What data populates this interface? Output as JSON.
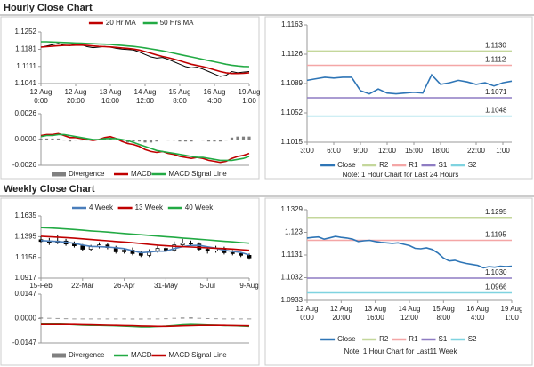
{
  "chart_data": [
    {
      "type": "price",
      "title": "Hourly Close Chart",
      "categories": [
        "12 Aug\n0:00",
        null,
        null,
        null,
        null,
        null,
        "12 Aug\n20:00",
        null,
        null,
        null,
        null,
        null,
        "13 Aug\n16:00",
        null,
        null,
        null,
        null,
        null,
        "14 Aug\n12:00",
        null,
        null,
        null,
        null,
        null,
        "15 Aug\n8:00",
        null,
        null,
        null,
        null,
        null,
        "16 Aug\n4:00",
        null,
        null,
        null,
        null,
        null,
        "19 Aug\n1:00"
      ],
      "ylim": [
        1.1041,
        1.1252
      ],
      "yticks": [
        1.1252,
        1.1181,
        1.1111,
        1.1041
      ],
      "price": {
        "color": "#000000",
        "values": [
          1.119,
          1.1195,
          1.12,
          1.1205,
          1.1198,
          1.1196,
          1.1203,
          1.12,
          1.1192,
          1.1188,
          1.119,
          1.1193,
          1.119,
          1.1185,
          1.1182,
          1.118,
          1.1178,
          1.117,
          1.116,
          1.115,
          1.1145,
          1.1148,
          1.114,
          1.113,
          1.112,
          1.111,
          1.1105,
          1.1108,
          1.11,
          1.109,
          1.108,
          1.107,
          1.1075,
          1.109,
          1.1085,
          1.1088,
          1.109
        ]
      },
      "series": [
        {
          "name": "20 Hr MA",
          "color": "#c00000",
          "values": [
            1.119,
            1.1192,
            1.1194,
            1.1196,
            1.1197,
            1.1197,
            1.1198,
            1.1198,
            1.1197,
            1.1195,
            1.1193,
            1.1192,
            1.1191,
            1.1189,
            1.1187,
            1.1185,
            1.1182,
            1.1178,
            1.1172,
            1.1165,
            1.1158,
            1.1152,
            1.1147,
            1.1141,
            1.1134,
            1.1127,
            1.112,
            1.1115,
            1.111,
            1.1104,
            1.1097,
            1.109,
            1.1085,
            1.1082,
            1.1082,
            1.1083,
            1.1085
          ]
        },
        {
          "name": "50 Hrs MA",
          "color": "#22aa44",
          "values": [
            1.1212,
            1.1212,
            1.1211,
            1.121,
            1.1209,
            1.1208,
            1.1207,
            1.1206,
            1.1205,
            1.1204,
            1.1203,
            1.1202,
            1.1201,
            1.1199,
            1.1197,
            1.1195,
            1.1193,
            1.119,
            1.1187,
            1.1183,
            1.1179,
            1.1175,
            1.117,
            1.1165,
            1.116,
            1.1155,
            1.115,
            1.1145,
            1.114,
            1.1135,
            1.113,
            1.1125,
            1.112,
            1.1116,
            1.1113,
            1.1111,
            1.111
          ]
        }
      ]
    },
    {
      "type": "macd",
      "ylim": [
        -0.0026,
        0.0026
      ],
      "yticks": [
        {
          "value": 0.0026,
          "label": "0.0026"
        },
        {
          "value": 0,
          "label": "0.0000"
        },
        {
          "value": -0.0026,
          "label": "-0.0026"
        }
      ],
      "series": [
        {
          "name": "Divergence",
          "color": "#808080",
          "kind": "bar",
          "values": [
            0.0001,
            0.0001,
            0.0001,
            0.0001,
            -0.0001,
            -0.0002,
            -0.0001,
            -0.0001,
            -0.0001,
            -0.0001,
            0,
            0.0001,
            0.0002,
            0,
            -0.0002,
            -0.0003,
            -0.0002,
            -0.0002,
            -0.0003,
            -0.0003,
            -0.0002,
            0,
            -0.0001,
            -0.0001,
            -0.0002,
            -0.0002,
            -0.0002,
            0,
            -0.0001,
            -0.0002,
            -0.0002,
            -0.0002,
            -0.0001,
            0.0002,
            0.0003,
            0.0003,
            0.0003
          ]
        },
        {
          "name": "MACD",
          "color": "#c00000",
          "kind": "line",
          "values": [
            0.0004,
            0.0005,
            0.0005,
            0.0006,
            0.0004,
            0.0002,
            0.0002,
            0.0001,
            0,
            -0.0001,
            0,
            0.0002,
            0.0003,
            0.0001,
            -0.0002,
            -0.0004,
            -0.0005,
            -0.0007,
            -0.001,
            -0.0012,
            -0.0013,
            -0.0012,
            -0.0014,
            -0.0015,
            -0.0017,
            -0.0018,
            -0.0019,
            -0.0018,
            -0.0019,
            -0.0021,
            -0.0022,
            -0.0023,
            -0.0022,
            -0.0019,
            -0.0017,
            -0.0016,
            -0.0014
          ]
        },
        {
          "name": "MACD Signal Line",
          "color": "#22aa44",
          "kind": "line",
          "values": [
            0.0003,
            0.0004,
            0.0004,
            0.0005,
            0.0005,
            0.0004,
            0.0003,
            0.0002,
            0.0001,
            0,
            0,
            0.0001,
            0.0001,
            0.0001,
            0,
            -0.0001,
            -0.0003,
            -0.0005,
            -0.0007,
            -0.0009,
            -0.0011,
            -0.0012,
            -0.0013,
            -0.0014,
            -0.0015,
            -0.0016,
            -0.0017,
            -0.0018,
            -0.0018,
            -0.0019,
            -0.002,
            -0.0021,
            -0.0021,
            -0.0021,
            -0.002,
            -0.0019,
            -0.0017
          ]
        }
      ]
    },
    {
      "type": "levels",
      "categories": [
        "3:00",
        null,
        null,
        "6:00",
        null,
        null,
        "9:00",
        null,
        null,
        "12:00",
        null,
        null,
        "15:00",
        null,
        null,
        "18:00",
        null,
        null,
        null,
        "22:00",
        null,
        null,
        "1:00",
        null
      ],
      "ylim": [
        1.1015,
        1.1163
      ],
      "yticks": [
        1.1163,
        1.1126,
        1.1089,
        1.1052,
        1.1015
      ],
      "series": [
        {
          "name": "Close",
          "color": "#2e75b6",
          "values": [
            1.1093,
            1.1095,
            1.1097,
            1.1096,
            1.1097,
            1.1097,
            1.108,
            1.1076,
            1.1082,
            1.1077,
            1.1076,
            1.1077,
            1.1078,
            1.1077,
            1.11,
            1.1088,
            1.109,
            1.1093,
            1.1091,
            1.1088,
            1.109,
            1.1086,
            1.109,
            1.1092
          ]
        }
      ],
      "levels": [
        {
          "name": "R2",
          "value": 1.113,
          "label": "1.1130",
          "color": "#c4d79b"
        },
        {
          "name": "R1",
          "value": 1.1112,
          "label": "1.1112",
          "color": "#f4a6a6"
        },
        {
          "name": "S1",
          "value": 1.1071,
          "label": "1.1071",
          "color": "#8e7cc3"
        },
        {
          "name": "S2",
          "value": 1.1048,
          "label": "1.1048",
          "color": "#7fd3e0"
        }
      ],
      "note": "Note: 1 Hour Chart for Last 24 Hours"
    },
    {
      "type": "price",
      "title": "Weekly Close Chart",
      "categories": [
        "15-Feb",
        null,
        null,
        null,
        null,
        "22-Mar",
        null,
        null,
        null,
        null,
        "26-Apr",
        null,
        null,
        null,
        null,
        "31-May",
        null,
        null,
        null,
        null,
        "5-Jul",
        null,
        null,
        null,
        null,
        "9-Aug"
      ],
      "ylim": [
        1.0917,
        1.1635
      ],
      "yticks": [
        1.1635,
        1.1395,
        1.1156,
        1.0917
      ],
      "candles": {
        "open": [
          1.136,
          1.134,
          1.133,
          1.1345,
          1.131,
          1.129,
          1.125,
          1.128,
          1.13,
          1.127,
          1.122,
          1.124,
          1.12,
          1.118,
          1.123,
          1.126,
          1.124,
          1.13,
          1.132,
          1.131,
          1.125,
          1.123,
          1.126,
          1.121,
          1.12,
          1.118
        ],
        "high": [
          1.14,
          1.138,
          1.142,
          1.137,
          1.134,
          1.131,
          1.13,
          1.133,
          1.132,
          1.129,
          1.126,
          1.127,
          1.123,
          1.125,
          1.129,
          1.128,
          1.134,
          1.137,
          1.135,
          1.133,
          1.127,
          1.129,
          1.128,
          1.124,
          1.122,
          1.12
        ],
        "low": [
          1.132,
          1.13,
          1.131,
          1.129,
          1.127,
          1.123,
          1.123,
          1.126,
          1.125,
          1.12,
          1.12,
          1.118,
          1.116,
          1.116,
          1.121,
          1.122,
          1.122,
          1.128,
          1.129,
          1.123,
          1.12,
          1.121,
          1.119,
          1.118,
          1.116,
          1.113
        ],
        "close": [
          1.134,
          1.133,
          1.1345,
          1.131,
          1.129,
          1.125,
          1.128,
          1.13,
          1.127,
          1.122,
          1.124,
          1.12,
          1.118,
          1.123,
          1.126,
          1.124,
          1.13,
          1.132,
          1.131,
          1.125,
          1.123,
          1.126,
          1.121,
          1.12,
          1.118,
          1.115
        ]
      },
      "series": [
        {
          "name": "4 Week",
          "color": "#4a7ebb",
          "values": [
            1.135,
            1.1345,
            1.134,
            1.1331,
            1.1319,
            1.1299,
            1.1283,
            1.128,
            1.1275,
            1.1268,
            1.1258,
            1.1233,
            1.121,
            1.1218,
            1.1228,
            1.1228,
            1.1258,
            1.128,
            1.1293,
            1.1295,
            1.1278,
            1.1263,
            1.1238,
            1.1225,
            1.1213,
            1.1185
          ]
        },
        {
          "name": "13 Week",
          "color": "#c00000",
          "values": [
            1.14,
            1.1395,
            1.139,
            1.1385,
            1.1378,
            1.137,
            1.1362,
            1.1355,
            1.1348,
            1.134,
            1.1333,
            1.1325,
            1.1316,
            1.1306,
            1.1298,
            1.129,
            1.1284,
            1.128,
            1.1276,
            1.1272,
            1.1266,
            1.1262,
            1.1258,
            1.1252,
            1.1245,
            1.1238
          ]
        },
        {
          "name": "40 Week",
          "color": "#22aa44",
          "values": [
            1.15,
            1.1495,
            1.149,
            1.1484,
            1.1478,
            1.147,
            1.1462,
            1.1455,
            1.1448,
            1.144,
            1.1432,
            1.1425,
            1.1418,
            1.141,
            1.1402,
            1.1395,
            1.1388,
            1.138,
            1.1372,
            1.1365,
            1.1358,
            1.135,
            1.1342,
            1.1335,
            1.1327,
            1.132
          ]
        }
      ]
    },
    {
      "type": "macd",
      "ylim": [
        -0.0147,
        0.0147
      ],
      "yticks": [
        {
          "value": 0.0147,
          "label": "0.0147"
        },
        {
          "value": 0,
          "label": "0.0000"
        },
        {
          "value": -0.0147,
          "label": "-0.0147"
        }
      ],
      "series": [
        {
          "name": "Divergence",
          "color": "#808080",
          "kind": "bar",
          "values": [
            0.0006,
            0.0004,
            0.0003,
            0.0001,
            -0.0001,
            -0.0003,
            -0.0003,
            -0.0002,
            -0.0002,
            -0.0003,
            -0.0004,
            -0.0005,
            -0.0005,
            -0.0004,
            -0.0001,
            0.0001,
            0.0004,
            0.0006,
            0.0007,
            0.0004,
            0.0002,
            0.0001,
            -0.0001,
            -0.0001,
            -0.0002,
            -0.0003
          ]
        },
        {
          "name": "MACD",
          "color": "#22aa44",
          "kind": "line",
          "values": [
            -0.003,
            -0.0032,
            -0.0033,
            -0.0035,
            -0.0037,
            -0.004,
            -0.0041,
            -0.0041,
            -0.0042,
            -0.0044,
            -0.0046,
            -0.0048,
            -0.005,
            -0.005,
            -0.0048,
            -0.0046,
            -0.0042,
            -0.0038,
            -0.0036,
            -0.0037,
            -0.0039,
            -0.004,
            -0.0042,
            -0.0043,
            -0.0045,
            -0.0047
          ]
        },
        {
          "name": "MACD Signal Line",
          "color": "#c00000",
          "kind": "line",
          "values": [
            -0.0036,
            -0.0036,
            -0.0036,
            -0.0036,
            -0.0036,
            -0.0037,
            -0.0038,
            -0.0039,
            -0.004,
            -0.0041,
            -0.0042,
            -0.0043,
            -0.0045,
            -0.0046,
            -0.0047,
            -0.0047,
            -0.0046,
            -0.0044,
            -0.0043,
            -0.0041,
            -0.0041,
            -0.0041,
            -0.0041,
            -0.0042,
            -0.0043,
            -0.0044
          ]
        }
      ]
    },
    {
      "type": "levels",
      "categories": [
        "12 Aug\n0:00",
        null,
        null,
        null,
        null,
        null,
        "12 Aug\n20:00",
        null,
        null,
        null,
        null,
        null,
        "13 Aug\n16:00",
        null,
        null,
        null,
        null,
        null,
        "14 Aug\n12:00",
        null,
        null,
        null,
        null,
        null,
        "15 Aug\n8:00",
        null,
        null,
        null,
        null,
        null,
        "16 Aug\n4:00",
        null,
        null,
        null,
        null,
        null,
        "19 Aug\n1:00"
      ],
      "ylim": [
        1.0933,
        1.1329
      ],
      "yticks": [
        1.1329,
        1.123,
        1.1131,
        1.1032,
        1.0933
      ],
      "series": [
        {
          "name": "Close",
          "color": "#2e75b6",
          "values": [
            1.1205,
            1.1208,
            1.121,
            1.12,
            1.1206,
            1.1212,
            1.1208,
            1.1205,
            1.12,
            1.119,
            1.1193,
            1.1195,
            1.119,
            1.1186,
            1.1184,
            1.1182,
            1.1184,
            1.1178,
            1.1172,
            1.116,
            1.1158,
            1.1162,
            1.1155,
            1.114,
            1.1118,
            1.1105,
            1.1108,
            1.11,
            1.1094,
            1.109,
            1.1086,
            1.1075,
            1.108,
            1.1078,
            1.1082,
            1.108,
            1.1082
          ]
        }
      ],
      "levels": [
        {
          "name": "R2",
          "value": 1.1295,
          "label": "1.1295",
          "color": "#c4d79b"
        },
        {
          "name": "R1",
          "value": 1.1195,
          "label": "1.1195",
          "color": "#f4a6a6"
        },
        {
          "name": "S1",
          "value": 1.103,
          "label": "1.1030",
          "color": "#8e7cc3"
        },
        {
          "name": "S2",
          "value": 1.0966,
          "label": "1.0966",
          "color": "#7fd3e0"
        }
      ],
      "note": "Note: 1 Hour Chart for Last11 Week"
    }
  ]
}
